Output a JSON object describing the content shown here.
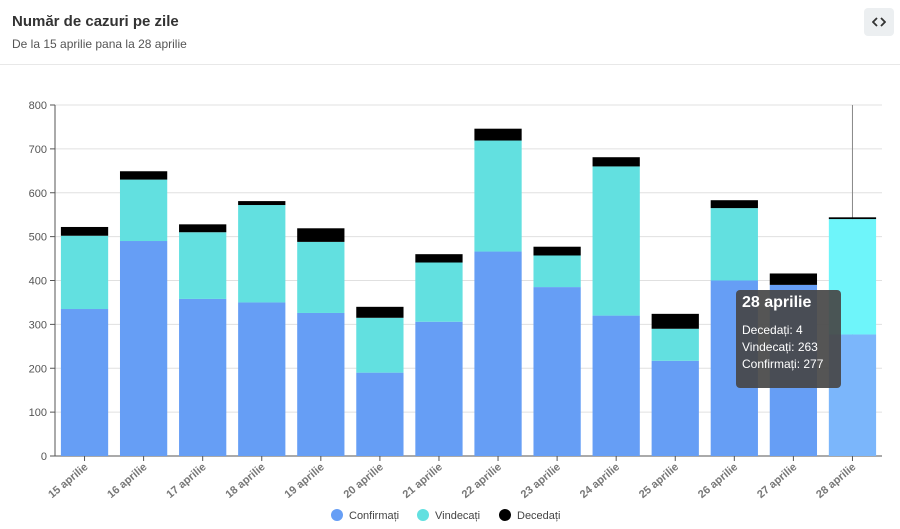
{
  "header": {
    "title": "Număr de cazuri pe zile",
    "subtitle": "De la 15 aprilie pana la 28 aprilie",
    "embed_icon": "code-icon"
  },
  "colors": {
    "confirmati": "#669ef5",
    "vindecati": "#62e0e0",
    "decedati": "#000000",
    "highlight_confirmati": "#7bb6fb",
    "highlight_vindecati": "#6ef5fa",
    "grid": "#e0e0e0",
    "axis": "#555555"
  },
  "chart_data": {
    "type": "bar",
    "stacked": true,
    "title": "Număr de cazuri pe zile",
    "subtitle": "De la 15 aprilie pana la 28 aprilie",
    "categories": [
      "15 aprilie",
      "16 aprilie",
      "17 aprilie",
      "18 aprilie",
      "19 aprilie",
      "20 aprilie",
      "21 aprilie",
      "22 aprilie",
      "23 aprilie",
      "24 aprilie",
      "25 aprilie",
      "26 aprilie",
      "27 aprilie",
      "28 aprilie"
    ],
    "series": [
      {
        "name": "Confirmați",
        "key": "confirmati",
        "values": [
          335,
          490,
          358,
          350,
          326,
          190,
          306,
          466,
          385,
          320,
          217,
          400,
          390,
          277
        ]
      },
      {
        "name": "Vindecați",
        "key": "vindecati",
        "values": [
          167,
          140,
          152,
          222,
          162,
          125,
          135,
          253,
          72,
          340,
          73,
          165,
          0,
          263
        ]
      },
      {
        "name": "Decedați",
        "key": "decedati",
        "values": [
          20,
          19,
          18,
          9,
          31,
          25,
          19,
          27,
          20,
          21,
          34,
          18,
          26,
          4
        ]
      }
    ],
    "ylim": [
      0,
      800
    ],
    "yticks": [
      0,
      100,
      200,
      300,
      400,
      500,
      600,
      700,
      800
    ],
    "grid": true,
    "legend_position": "bottom-center",
    "highlighted_index": 13,
    "tooltip": {
      "title": "28 aprilie",
      "lines": [
        {
          "label": "Decedați",
          "value": 4
        },
        {
          "label": "Vindecați",
          "value": 263
        },
        {
          "label": "Confirmați",
          "value": 277
        }
      ]
    }
  }
}
